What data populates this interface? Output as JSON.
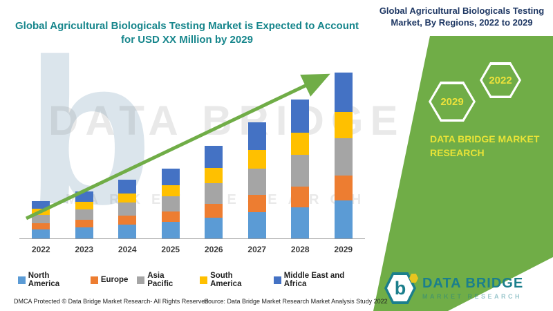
{
  "page": {
    "left_title": "Global Agricultural Biologicals Testing Market is Expected to Account for USD XX Million by 2029",
    "right_title": "Global Agricultural Biologicals Testing Market, By Regions, 2022 to 2029"
  },
  "badges": {
    "left_year": "2029",
    "right_year": "2022"
  },
  "brand": {
    "panel_name": "DATA BRIDGE MARKET RESEARCH",
    "logo_letter": "b",
    "logo_title": "DATA BRIDGE",
    "logo_subtitle": "MARKET RESEARCH"
  },
  "watermark": {
    "big_letter": "b",
    "line1": "DATA BRIDGE",
    "line2": "MARKET RESEARCH"
  },
  "footer": {
    "dmca": "DMCA Protected © Data Bridge Market Research- All Rights Reserved.",
    "source": "Source: Data Bridge Market Research Market Analysis Study 2022"
  },
  "colors": {
    "panel_green": "#70AD47",
    "arrow_green": "#70AD47",
    "left_title_teal": "#17868C",
    "right_title_navy": "#1F3864",
    "badge_year_yellow": "#EDE23B",
    "logo_teal": "#1B7F8C"
  },
  "chart_data": {
    "type": "bar",
    "stacked": true,
    "title": "Global Agricultural Biologicals Testing Market, By Regions, 2022 to 2029",
    "xlabel": "",
    "ylabel": "",
    "y_axis_labels_visible": false,
    "value_units": "relative index (chart depicts USD XX Million, values unlabeled)",
    "ylim": [
      0,
      260
    ],
    "grid": false,
    "legend_position": "bottom",
    "trend_arrow": true,
    "categories": [
      "2022",
      "2023",
      "2024",
      "2025",
      "2026",
      "2027",
      "2028",
      "2029"
    ],
    "series": [
      {
        "name": "North America",
        "color": "#5B9BD5",
        "values": [
          13,
          16,
          20,
          24,
          30,
          38,
          45,
          55
        ]
      },
      {
        "name": "Europe",
        "color": "#ED7D31",
        "values": [
          9,
          11,
          13,
          15,
          20,
          25,
          30,
          36
        ]
      },
      {
        "name": "Asia Pacific",
        "color": "#A5A5A5",
        "values": [
          12,
          15,
          19,
          22,
          30,
          38,
          46,
          54
        ]
      },
      {
        "name": "South America",
        "color": "#FFC000",
        "values": [
          9,
          11,
          13,
          16,
          22,
          27,
          32,
          38
        ]
      },
      {
        "name": "Middle East and Africa",
        "color": "#4472C4",
        "values": [
          11,
          15,
          20,
          24,
          32,
          40,
          48,
          57
        ]
      }
    ],
    "totals": [
      54,
      68,
      85,
      101,
      134,
      168,
      201,
      240
    ]
  }
}
